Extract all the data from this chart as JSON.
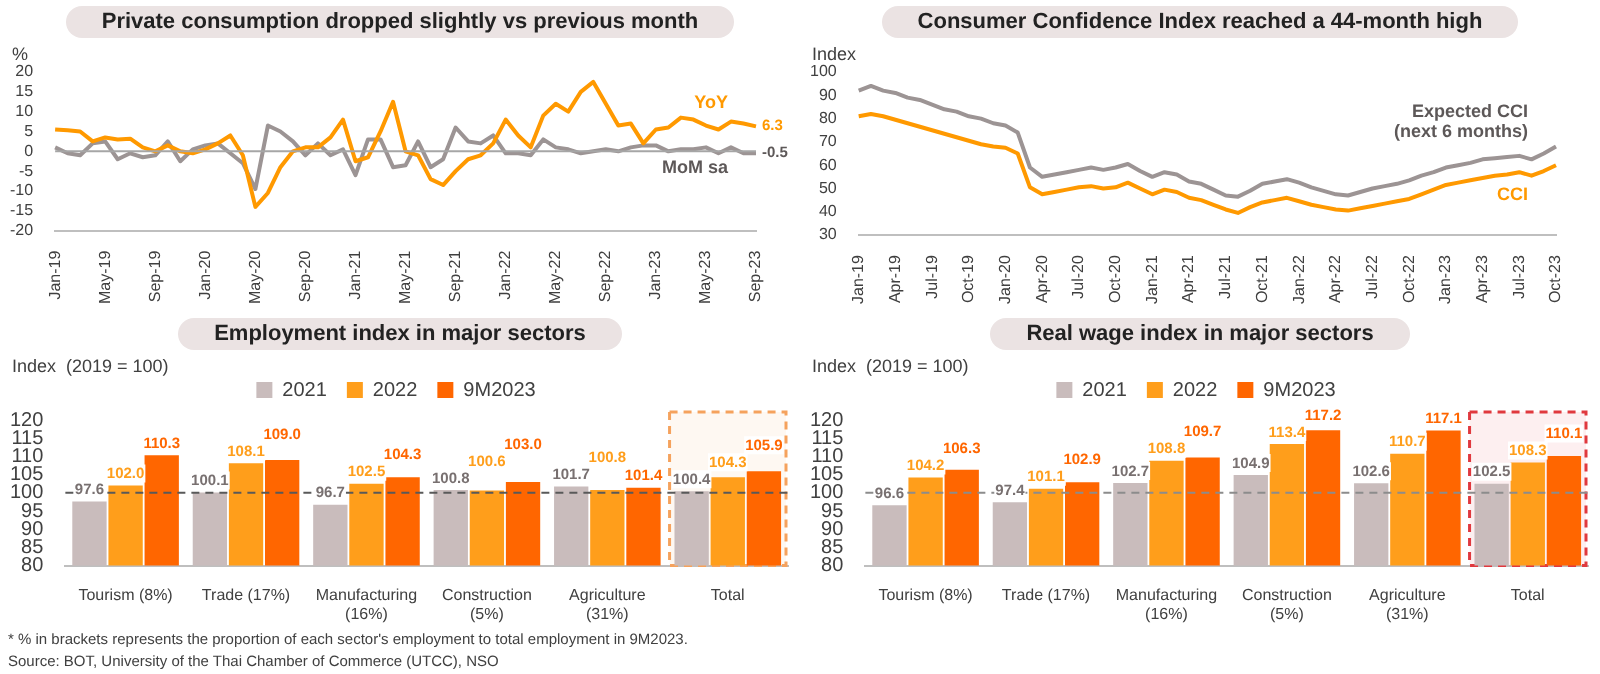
{
  "chart_data": [
    {
      "type": "line",
      "title": "Private consumption dropped slightly vs previous month",
      "ylabel": "%",
      "categories": [
        "Jan-19",
        null,
        null,
        null,
        "May-19",
        null,
        null,
        null,
        "Sep-19",
        null,
        null,
        null,
        "Jan-20",
        null,
        null,
        null,
        "May-20",
        null,
        null,
        null,
        "Sep-20",
        null,
        null,
        null,
        "Jan-21",
        null,
        null,
        null,
        "May-21",
        null,
        null,
        null,
        "Sep-21",
        null,
        null,
        null,
        "Jan-22",
        null,
        null,
        null,
        "May-22",
        null,
        null,
        null,
        "Sep-22",
        null,
        null,
        null,
        "Jan-23",
        null,
        null,
        null,
        "May-23",
        null,
        null,
        null,
        "Sep-23"
      ],
      "series": [
        {
          "name": "YoY",
          "color": "#ff9900",
          "values": [
            5.5,
            5.3,
            5,
            2.5,
            3.5,
            3,
            3.2,
            1,
            0,
            1.5,
            0,
            -0.5,
            0.5,
            2,
            4,
            -1,
            -14,
            -10.5,
            -4,
            0,
            1,
            1,
            3.5,
            8,
            -2.5,
            -1.5,
            5,
            12.5,
            0,
            -1,
            -7,
            -8.5,
            -5,
            -2,
            -1,
            2,
            8,
            4,
            1,
            9,
            12,
            10,
            15,
            17.5,
            12,
            6.5,
            7,
            2,
            5.5,
            6,
            8.5,
            8,
            6.5,
            5.5,
            7.5,
            7,
            6.3
          ],
          "value_labels": [
            null,
            null,
            null,
            null,
            null,
            null,
            null,
            null,
            null,
            null,
            null,
            null,
            null,
            null,
            null,
            null,
            null,
            null,
            null,
            null,
            null,
            null,
            null,
            null,
            null,
            null,
            null,
            null,
            null,
            null,
            null,
            null,
            null,
            null,
            null,
            null,
            null,
            null,
            null,
            null,
            null,
            null,
            null,
            null,
            null,
            null,
            null,
            null,
            null,
            null,
            null,
            null,
            null,
            null,
            null,
            null,
            "6.3"
          ]
        },
        {
          "name": "MoM sa",
          "color": "#9c9494",
          "values": [
            1,
            -0.5,
            -1,
            2,
            2.5,
            -2,
            -0.5,
            -1.5,
            -1,
            2.5,
            -2.5,
            0.5,
            1.5,
            2,
            -0.5,
            -3,
            -9.5,
            6.5,
            5,
            2.5,
            -1,
            2,
            -1,
            0.5,
            -6,
            3,
            3,
            -4,
            -3.5,
            2.5,
            -4,
            -2,
            6,
            2.5,
            2,
            4,
            -0.5,
            -0.5,
            -1,
            3,
            1,
            0.5,
            -0.5,
            0,
            0.5,
            0,
            1,
            1.5,
            1.5,
            0,
            0.5,
            0.5,
            1,
            -0.5,
            1,
            -0.5,
            -0.5
          ],
          "value_labels": [
            null,
            null,
            null,
            null,
            null,
            null,
            null,
            null,
            null,
            null,
            null,
            null,
            null,
            null,
            null,
            null,
            null,
            null,
            null,
            null,
            null,
            null,
            null,
            null,
            null,
            null,
            null,
            null,
            null,
            null,
            null,
            null,
            null,
            null,
            null,
            null,
            null,
            null,
            null,
            null,
            null,
            null,
            null,
            null,
            null,
            null,
            null,
            null,
            null,
            null,
            null,
            null,
            null,
            null,
            null,
            null,
            "-0.5"
          ]
        }
      ],
      "ylim": [
        -20,
        20
      ],
      "yticks": [
        -20,
        -15,
        -10,
        -5,
        0,
        5,
        10,
        15,
        20
      ],
      "ref_lines": [
        {
          "axis": "y",
          "value": 0,
          "color": "#a6a6a6"
        }
      ]
    },
    {
      "type": "line",
      "title": "Consumer Confidence Index reached a 44-month high",
      "ylabel": "Index",
      "categories": [
        "Jan-19",
        null,
        null,
        "Apr-19",
        null,
        null,
        "Jul-19",
        null,
        null,
        "Oct-19",
        null,
        null,
        "Jan-20",
        null,
        null,
        "Apr-20",
        null,
        null,
        "Jul-20",
        null,
        null,
        "Oct-20",
        null,
        null,
        "Jan-21",
        null,
        null,
        "Apr-21",
        null,
        null,
        "Jul-21",
        null,
        null,
        "Oct-21",
        null,
        null,
        "Jan-22",
        null,
        null,
        "Apr-22",
        null,
        null,
        "Jul-22",
        null,
        null,
        "Oct-22",
        null,
        null,
        "Jan-23",
        null,
        null,
        "Apr-23",
        null,
        null,
        "Jul-23",
        null,
        null,
        "Oct-23"
      ],
      "series": [
        {
          "name": "Expected CCI (next 6 months)",
          "color": "#9c9494",
          "values": [
            92,
            94,
            92,
            91,
            89,
            88,
            86,
            84,
            83,
            81,
            80,
            78,
            77,
            74,
            59,
            55,
            56,
            57,
            58,
            59,
            58,
            59,
            60.5,
            57.5,
            55,
            57,
            56,
            53,
            52,
            49.5,
            47,
            46.5,
            49,
            52,
            53,
            54,
            52.5,
            50.5,
            49,
            47.5,
            47,
            48.5,
            50,
            51,
            52,
            53.5,
            55.5,
            57,
            59,
            60,
            61,
            62.5,
            63,
            63.5,
            64,
            62.5,
            65,
            68
          ]
        },
        {
          "name": "CCI",
          "color": "#ff9900",
          "values": [
            81,
            82,
            81,
            79.5,
            78,
            76.5,
            75,
            73.5,
            72,
            70.5,
            69,
            68,
            67.5,
            65,
            50.5,
            47.5,
            48.5,
            49.5,
            50.5,
            51,
            50,
            50.5,
            52.5,
            50,
            47.5,
            49.5,
            48.5,
            46,
            45,
            43,
            41,
            39.5,
            42,
            44,
            45,
            46,
            44.5,
            43,
            42,
            41,
            40.5,
            41.5,
            42.5,
            43.5,
            44.5,
            45.5,
            47.5,
            49.5,
            51.5,
            52.5,
            53.5,
            54.5,
            55.5,
            56,
            57,
            55.5,
            57.5,
            60
          ]
        }
      ],
      "ylim": [
        30,
        100
      ],
      "yticks": [
        30,
        40,
        50,
        60,
        70,
        80,
        90,
        100
      ]
    },
    {
      "type": "bar",
      "title": "Employment index in major sectors",
      "ylabel": "Index  (2019 = 100)",
      "categories": [
        "Tourism (8%)",
        "Trade (17%)",
        "Manufacturing (16%)",
        "Construction (5%)",
        "Agriculture (31%)",
        "Total"
      ],
      "series": [
        {
          "name": "2021",
          "color": "#c9bcbc",
          "values": [
            97.6,
            100.1,
            96.7,
            100.8,
            101.7,
            100.4
          ],
          "value_labels": [
            "97.6",
            "100.1",
            "96.7",
            "100.8",
            "101.7",
            "100.4"
          ]
        },
        {
          "name": "2022",
          "color": "#ff9e1b",
          "values": [
            102.0,
            108.1,
            102.5,
            100.6,
            100.8,
            104.3
          ],
          "value_labels": [
            "102.0",
            "108.1",
            "102.5",
            "100.6",
            "100.8",
            "104.3"
          ]
        },
        {
          "name": "9M2023",
          "color": "#ff6600",
          "values": [
            110.3,
            109.0,
            104.3,
            103.0,
            101.4,
            105.9
          ],
          "value_labels": [
            "110.3",
            "109.0",
            "104.3",
            "103.0",
            "101.4",
            "105.9"
          ]
        }
      ],
      "ylim": [
        80,
        120
      ],
      "yticks": [
        80,
        85,
        90,
        95,
        100,
        105,
        110,
        115,
        120
      ],
      "legend": "top",
      "ref_lines": [
        {
          "axis": "y",
          "value": 100,
          "color": "#595959",
          "line_style": "dashed"
        }
      ],
      "bands": [
        {
          "axis": "x",
          "from": "Total",
          "to": "Total",
          "color": "#f5a25d"
        }
      ],
      "annotations": [
        "* % in brackets represents the proportion of each sector's employment to total employment in 9M2023.",
        "Source: BOT, University of the Thai Chamber of Commerce (UTCC), NSO"
      ]
    },
    {
      "type": "bar",
      "title": "Real wage index in major sectors",
      "ylabel": "Index  (2019 = 100)",
      "categories": [
        "Tourism (8%)",
        "Trade (17%)",
        "Manufacturing (16%)",
        "Construction (5%)",
        "Agriculture (31%)",
        "Total"
      ],
      "series": [
        {
          "name": "2021",
          "color": "#c9bcbc",
          "values": [
            96.6,
            97.4,
            102.7,
            104.9,
            102.6,
            102.5
          ],
          "value_labels": [
            "96.6",
            "97.4",
            "102.7",
            "104.9",
            "102.6",
            "102.5"
          ]
        },
        {
          "name": "2022",
          "color": "#ff9e1b",
          "values": [
            104.2,
            101.1,
            108.8,
            113.4,
            110.7,
            108.3
          ],
          "value_labels": [
            "104.2",
            "101.1",
            "108.8",
            "113.4",
            "110.7",
            "108.3"
          ]
        },
        {
          "name": "9M2023",
          "color": "#ff6600",
          "values": [
            106.3,
            102.9,
            109.7,
            117.2,
            117.1,
            110.1
          ],
          "value_labels": [
            "106.3",
            "102.9",
            "109.7",
            "117.2",
            "117.1",
            "110.1"
          ]
        }
      ],
      "ylim": [
        80,
        120
      ],
      "yticks": [
        80,
        85,
        90,
        95,
        100,
        105,
        110,
        115,
        120
      ],
      "legend": "top",
      "ref_lines": [
        {
          "axis": "y",
          "value": 100,
          "color": "#8c8c8c",
          "line_style": "dashed"
        }
      ],
      "bands": [
        {
          "axis": "x",
          "from": "Total",
          "to": "Total",
          "color": "#e0393e"
        }
      ]
    }
  ]
}
